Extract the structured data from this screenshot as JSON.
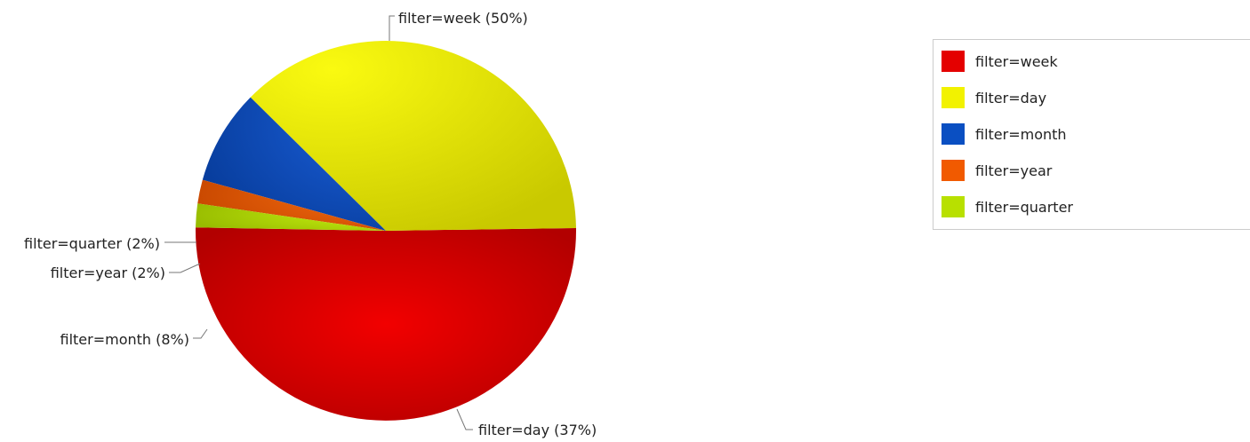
{
  "chart_data": {
    "type": "pie",
    "title": "",
    "slices": [
      {
        "label": "filter=week",
        "value": 50,
        "percent_label": "filter=week (50%)",
        "color": "#E40000"
      },
      {
        "label": "filter=day",
        "value": 37,
        "percent_label": "filter=day (37%)",
        "color": "#F2F200"
      },
      {
        "label": "filter=month",
        "value": 8,
        "percent_label": "filter=month (8%)",
        "color": "#0A4FC2"
      },
      {
        "label": "filter=year",
        "value": 2,
        "percent_label": "filter=year (2%)",
        "color": "#F15A00"
      },
      {
        "label": "filter=quarter",
        "value": 2,
        "percent_label": "filter=quarter (2%)",
        "color": "#B8E000"
      }
    ],
    "legend": {
      "placement": "top-right",
      "entries": [
        "filter=week",
        "filter=day",
        "filter=month",
        "filter=year",
        "filter=quarter"
      ]
    }
  }
}
